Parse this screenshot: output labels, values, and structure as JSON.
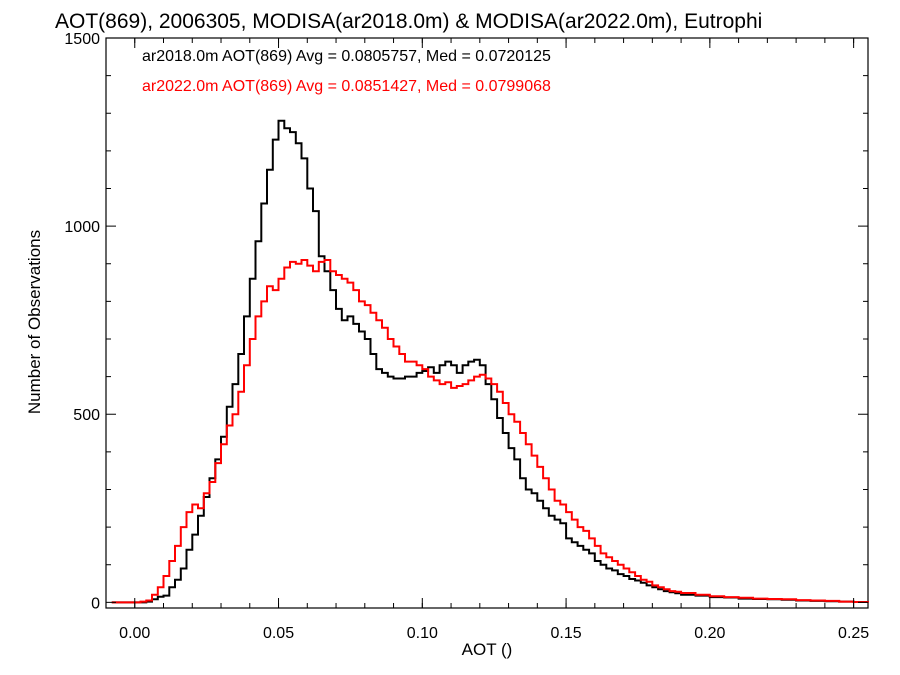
{
  "chart_data": {
    "type": "histogram",
    "title": "AOT(869), 2006305, MODISA(ar2018.0m) & MODISA(ar2022.0m), Eutrophi",
    "xlabel": "AOT ()",
    "ylabel": "Number of Observations",
    "xlim": [
      -0.01,
      0.255
    ],
    "ylim": [
      -15,
      1500
    ],
    "x_ticks": [
      0.0,
      0.05,
      0.1,
      0.15,
      0.2,
      0.25
    ],
    "x_tick_labels": [
      "0.00",
      "0.05",
      "0.10",
      "0.15",
      "0.20",
      "0.25"
    ],
    "y_ticks": [
      0,
      500,
      1000,
      1500
    ],
    "y_tick_labels": [
      "0",
      "500",
      "1000",
      "1500"
    ],
    "legend_placement": "top-left",
    "series": [
      {
        "name": "ar2018.0m",
        "legend": "ar2018.0m AOT(869) Avg = 0.0805757, Med = 0.0720125",
        "color": "#000000",
        "points": [
          [
            -0.008,
            0
          ],
          [
            0.0,
            0
          ],
          [
            0.004,
            2
          ],
          [
            0.006,
            8
          ],
          [
            0.008,
            15
          ],
          [
            0.01,
            18
          ],
          [
            0.012,
            40
          ],
          [
            0.014,
            60
          ],
          [
            0.016,
            90
          ],
          [
            0.018,
            140
          ],
          [
            0.02,
            180
          ],
          [
            0.022,
            230
          ],
          [
            0.024,
            280
          ],
          [
            0.026,
            330
          ],
          [
            0.028,
            380
          ],
          [
            0.03,
            440
          ],
          [
            0.032,
            520
          ],
          [
            0.034,
            580
          ],
          [
            0.036,
            660
          ],
          [
            0.038,
            760
          ],
          [
            0.04,
            860
          ],
          [
            0.042,
            960
          ],
          [
            0.044,
            1060
          ],
          [
            0.046,
            1150
          ],
          [
            0.048,
            1230
          ],
          [
            0.05,
            1280
          ],
          [
            0.052,
            1260
          ],
          [
            0.054,
            1250
          ],
          [
            0.056,
            1220
          ],
          [
            0.058,
            1180
          ],
          [
            0.06,
            1100
          ],
          [
            0.062,
            1040
          ],
          [
            0.064,
            920
          ],
          [
            0.066,
            880
          ],
          [
            0.068,
            830
          ],
          [
            0.07,
            780
          ],
          [
            0.072,
            750
          ],
          [
            0.074,
            760
          ],
          [
            0.076,
            740
          ],
          [
            0.078,
            720
          ],
          [
            0.08,
            700
          ],
          [
            0.082,
            660
          ],
          [
            0.084,
            620
          ],
          [
            0.086,
            610
          ],
          [
            0.088,
            600
          ],
          [
            0.09,
            595
          ],
          [
            0.092,
            595
          ],
          [
            0.094,
            600
          ],
          [
            0.096,
            600
          ],
          [
            0.098,
            610
          ],
          [
            0.1,
            615
          ],
          [
            0.102,
            625
          ],
          [
            0.104,
            610
          ],
          [
            0.106,
            630
          ],
          [
            0.108,
            640
          ],
          [
            0.11,
            630
          ],
          [
            0.112,
            610
          ],
          [
            0.114,
            630
          ],
          [
            0.116,
            640
          ],
          [
            0.118,
            645
          ],
          [
            0.12,
            630
          ],
          [
            0.122,
            580
          ],
          [
            0.124,
            540
          ],
          [
            0.126,
            490
          ],
          [
            0.128,
            450
          ],
          [
            0.13,
            410
          ],
          [
            0.132,
            380
          ],
          [
            0.134,
            330
          ],
          [
            0.136,
            300
          ],
          [
            0.138,
            290
          ],
          [
            0.14,
            270
          ],
          [
            0.142,
            250
          ],
          [
            0.144,
            230
          ],
          [
            0.146,
            220
          ],
          [
            0.148,
            210
          ],
          [
            0.15,
            170
          ],
          [
            0.152,
            160
          ],
          [
            0.154,
            150
          ],
          [
            0.156,
            140
          ],
          [
            0.158,
            130
          ],
          [
            0.16,
            110
          ],
          [
            0.162,
            100
          ],
          [
            0.164,
            90
          ],
          [
            0.166,
            85
          ],
          [
            0.168,
            75
          ],
          [
            0.17,
            70
          ],
          [
            0.172,
            62
          ],
          [
            0.174,
            58
          ],
          [
            0.176,
            52
          ],
          [
            0.178,
            45
          ],
          [
            0.18,
            40
          ],
          [
            0.182,
            35
          ],
          [
            0.184,
            30
          ],
          [
            0.186,
            27
          ],
          [
            0.188,
            24
          ],
          [
            0.19,
            20
          ],
          [
            0.195,
            18
          ],
          [
            0.2,
            14
          ],
          [
            0.205,
            13
          ],
          [
            0.21,
            10
          ],
          [
            0.215,
            9
          ],
          [
            0.22,
            8
          ],
          [
            0.225,
            7
          ],
          [
            0.23,
            5
          ],
          [
            0.235,
            4
          ],
          [
            0.24,
            3
          ],
          [
            0.245,
            2
          ],
          [
            0.25,
            1
          ],
          [
            0.255,
            0
          ]
        ]
      },
      {
        "name": "ar2022.0m",
        "legend": "ar2022.0m AOT(869) Avg = 0.0851427, Med = 0.0799068",
        "color": "#ff0000",
        "points": [
          [
            -0.008,
            0
          ],
          [
            0.0,
            0
          ],
          [
            0.002,
            2
          ],
          [
            0.004,
            5
          ],
          [
            0.006,
            20
          ],
          [
            0.008,
            40
          ],
          [
            0.01,
            70
          ],
          [
            0.012,
            110
          ],
          [
            0.014,
            150
          ],
          [
            0.016,
            200
          ],
          [
            0.018,
            240
          ],
          [
            0.02,
            260
          ],
          [
            0.022,
            250
          ],
          [
            0.024,
            290
          ],
          [
            0.026,
            320
          ],
          [
            0.028,
            370
          ],
          [
            0.03,
            420
          ],
          [
            0.032,
            470
          ],
          [
            0.034,
            500
          ],
          [
            0.036,
            560
          ],
          [
            0.038,
            630
          ],
          [
            0.04,
            700
          ],
          [
            0.042,
            760
          ],
          [
            0.044,
            800
          ],
          [
            0.046,
            840
          ],
          [
            0.048,
            830
          ],
          [
            0.05,
            860
          ],
          [
            0.052,
            890
          ],
          [
            0.054,
            905
          ],
          [
            0.056,
            900
          ],
          [
            0.058,
            910
          ],
          [
            0.06,
            895
          ],
          [
            0.062,
            880
          ],
          [
            0.064,
            905
          ],
          [
            0.066,
            910
          ],
          [
            0.068,
            880
          ],
          [
            0.07,
            870
          ],
          [
            0.072,
            860
          ],
          [
            0.074,
            850
          ],
          [
            0.076,
            830
          ],
          [
            0.078,
            800
          ],
          [
            0.08,
            790
          ],
          [
            0.082,
            770
          ],
          [
            0.084,
            750
          ],
          [
            0.086,
            730
          ],
          [
            0.088,
            700
          ],
          [
            0.09,
            680
          ],
          [
            0.092,
            660
          ],
          [
            0.094,
            640
          ],
          [
            0.096,
            640
          ],
          [
            0.098,
            630
          ],
          [
            0.1,
            620
          ],
          [
            0.102,
            600
          ],
          [
            0.104,
            590
          ],
          [
            0.106,
            580
          ],
          [
            0.108,
            585
          ],
          [
            0.11,
            570
          ],
          [
            0.112,
            575
          ],
          [
            0.114,
            580
          ],
          [
            0.116,
            590
          ],
          [
            0.118,
            600
          ],
          [
            0.12,
            605
          ],
          [
            0.122,
            595
          ],
          [
            0.124,
            580
          ],
          [
            0.126,
            560
          ],
          [
            0.128,
            530
          ],
          [
            0.13,
            500
          ],
          [
            0.132,
            480
          ],
          [
            0.134,
            450
          ],
          [
            0.136,
            420
          ],
          [
            0.138,
            390
          ],
          [
            0.14,
            360
          ],
          [
            0.142,
            330
          ],
          [
            0.144,
            300
          ],
          [
            0.146,
            270
          ],
          [
            0.148,
            260
          ],
          [
            0.15,
            240
          ],
          [
            0.152,
            220
          ],
          [
            0.154,
            200
          ],
          [
            0.156,
            190
          ],
          [
            0.158,
            170
          ],
          [
            0.16,
            150
          ],
          [
            0.162,
            130
          ],
          [
            0.164,
            120
          ],
          [
            0.166,
            110
          ],
          [
            0.168,
            100
          ],
          [
            0.17,
            90
          ],
          [
            0.172,
            80
          ],
          [
            0.174,
            70
          ],
          [
            0.176,
            60
          ],
          [
            0.178,
            55
          ],
          [
            0.18,
            45
          ],
          [
            0.182,
            40
          ],
          [
            0.184,
            35
          ],
          [
            0.186,
            30
          ],
          [
            0.188,
            28
          ],
          [
            0.19,
            25
          ],
          [
            0.195,
            20
          ],
          [
            0.2,
            16
          ],
          [
            0.205,
            14
          ],
          [
            0.21,
            12
          ],
          [
            0.215,
            10
          ],
          [
            0.22,
            9
          ],
          [
            0.225,
            8
          ],
          [
            0.23,
            6
          ],
          [
            0.235,
            5
          ],
          [
            0.24,
            4
          ],
          [
            0.245,
            2
          ],
          [
            0.25,
            1
          ],
          [
            0.255,
            0
          ]
        ]
      }
    ]
  }
}
